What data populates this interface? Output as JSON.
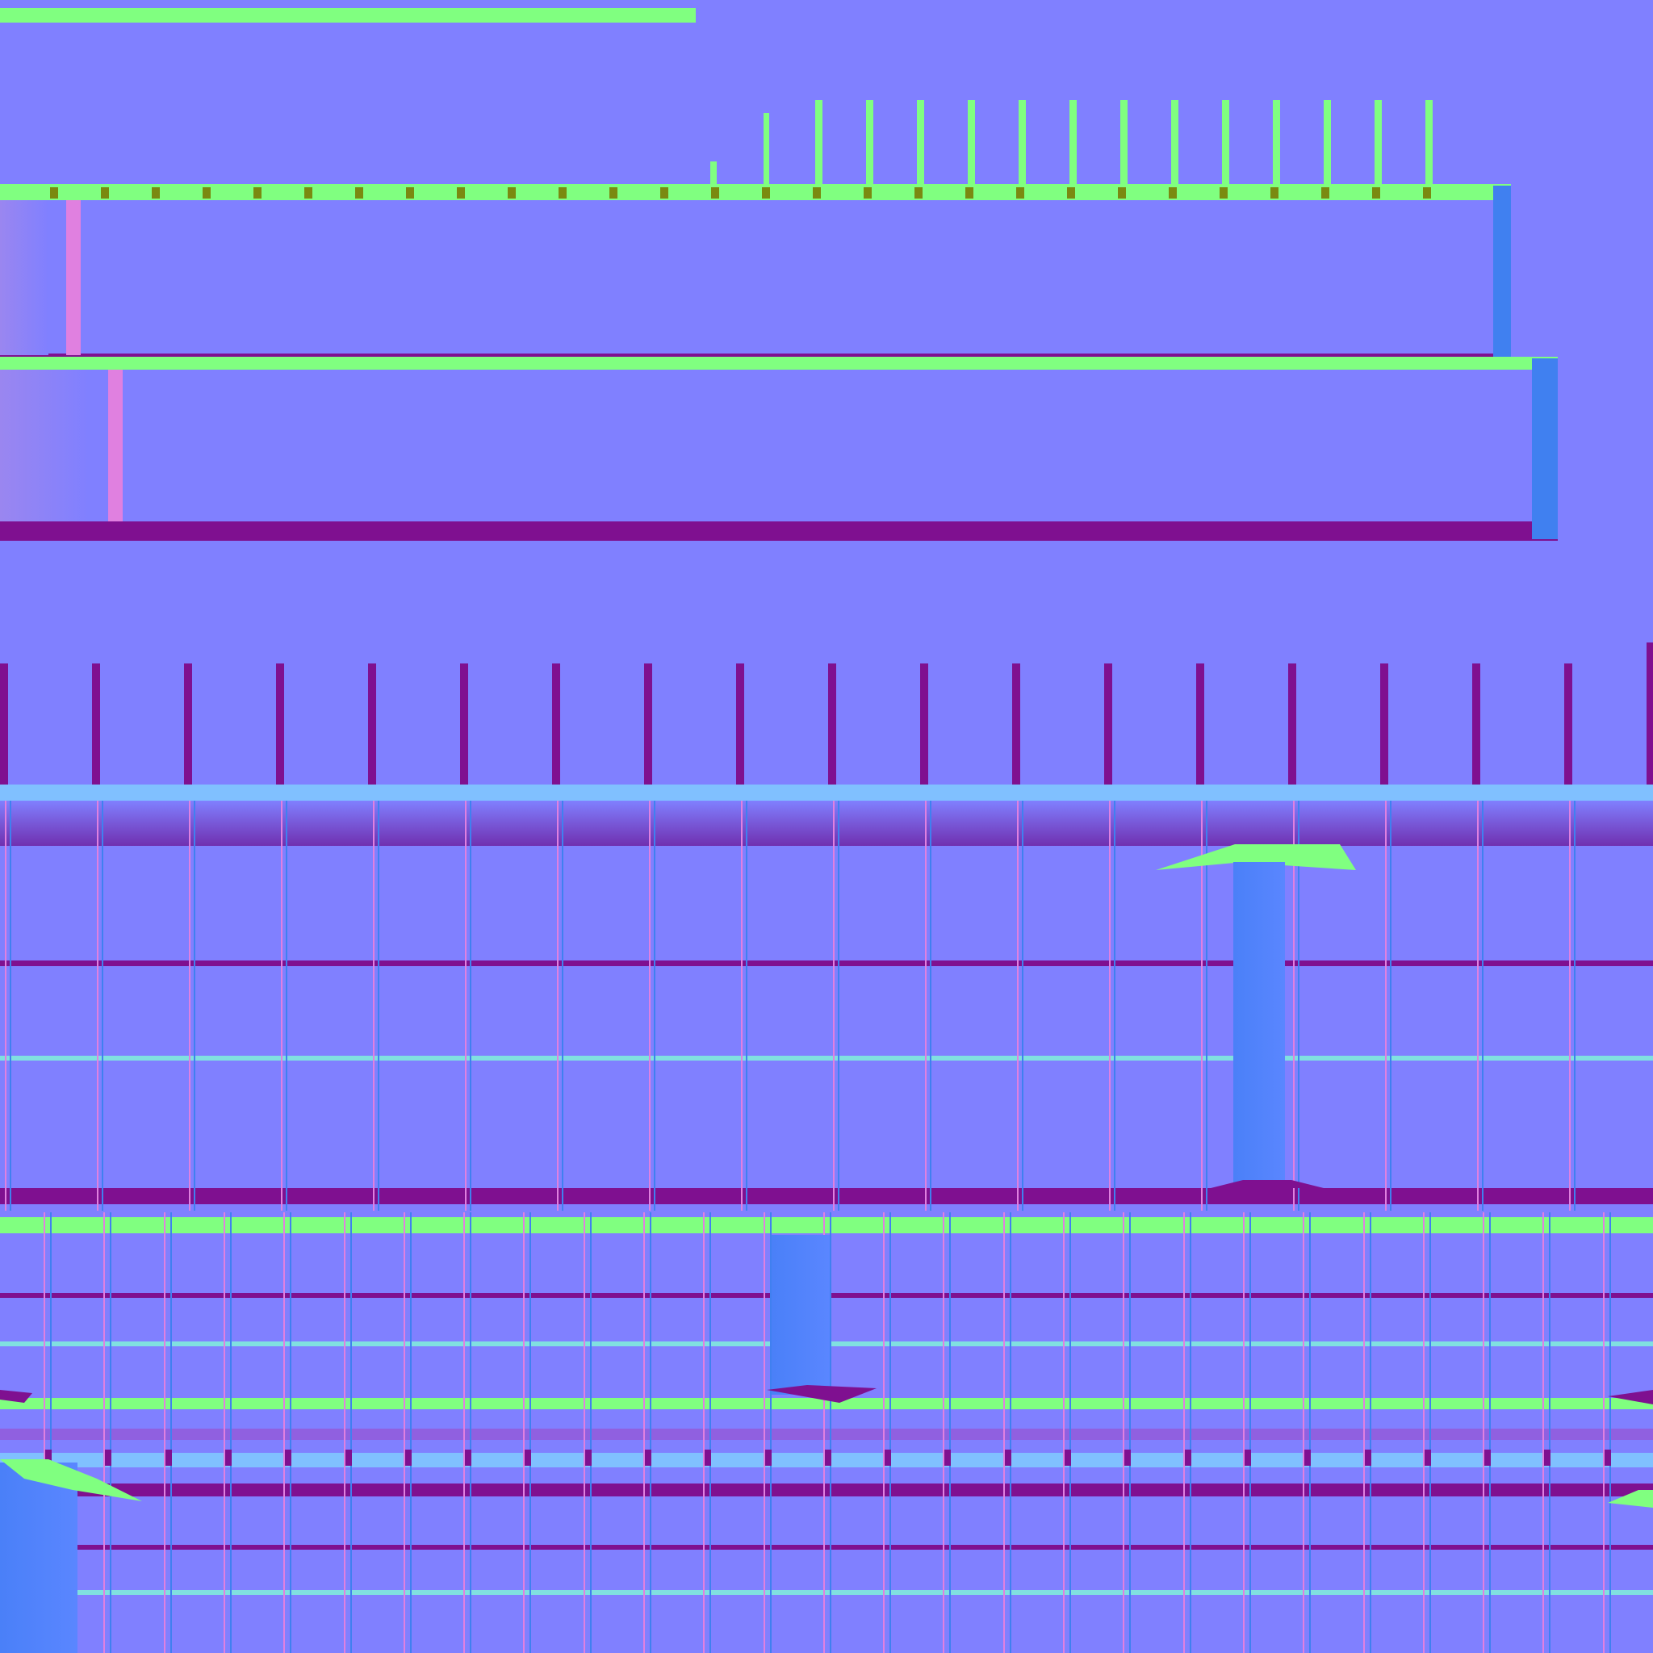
{
  "texture": {
    "kind": "tangent-space normal map",
    "text": ""
  },
  "palette": {
    "base": "#8080ff",
    "edge_up": "#80ff80",
    "edge_down": "#7f1090",
    "edge_left": "#e080e0",
    "edge_right": "#4080f0",
    "edge_up_soft": "#80c0ff",
    "edge_down_soft": "#9060e0",
    "edge_olive": "#7a8a10",
    "tint_cyan": "#80e0e0"
  }
}
